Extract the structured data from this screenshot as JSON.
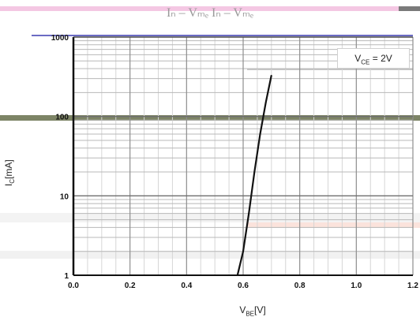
{
  "title": "Iₙ – Vₘₑ  Iₙ – Vₘₑ",
  "chart_data": {
    "type": "line",
    "xlabel": "V",
    "xlabel_sub": "BE",
    "xlabel_unit": "[V]",
    "ylabel": "I",
    "ylabel_sub": "C",
    "ylabel_unit": "[mA]",
    "legend": {
      "prefix": "V",
      "sub": "CE",
      "suffix": " = 2V",
      "position": "top-right"
    },
    "xlim": [
      0,
      1.2
    ],
    "ylim": [
      1,
      1000
    ],
    "y_scale": "log",
    "grid": true,
    "x_ticks": [
      "0.0",
      "0.2",
      "0.4",
      "0.6",
      "0.8",
      "1.0",
      "1.2"
    ],
    "y_ticks": [
      "1",
      "10",
      "100",
      "1000"
    ],
    "series": [
      {
        "x": [
          0.58,
          0.6,
          0.62,
          0.64,
          0.66,
          0.68,
          0.7
        ],
        "y": [
          1,
          2,
          6,
          20,
          60,
          150,
          330
        ]
      }
    ]
  }
}
